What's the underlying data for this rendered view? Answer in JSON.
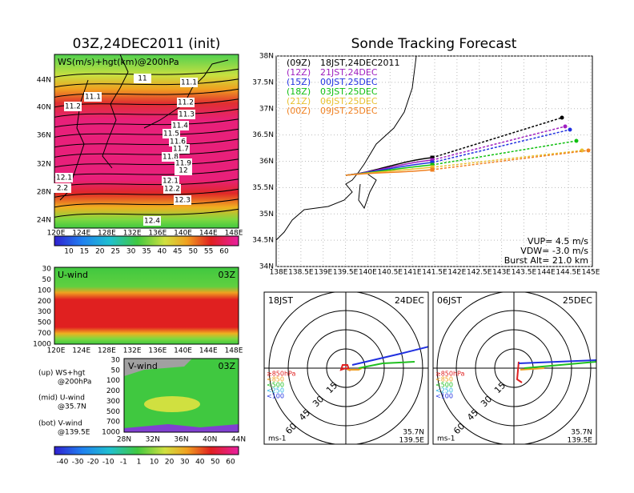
{
  "left_map": {
    "title": "03Z,24DEC2011 (init)",
    "label": "WS(m/s)+hgt(km)@200hPa",
    "lat_labels": [
      "44N",
      "40N",
      "36N",
      "32N",
      "28N",
      "24N"
    ],
    "lon_labels": [
      "120E",
      "124E",
      "128E",
      "132E",
      "136E",
      "140E",
      "144E",
      "148E"
    ],
    "contour_labels": [
      "11",
      "11.1",
      "11.1",
      "11.2",
      "11.2",
      "11.3",
      "11.4",
      "11.5",
      "11.6",
      "11.7",
      "11.8",
      "11.9",
      "12",
      "12.1",
      "2.2",
      "12.1",
      "12.2",
      "12.3",
      "12.4"
    ],
    "colorbar_labels": [
      "10",
      "15",
      "20",
      "25",
      "30",
      "35",
      "40",
      "45",
      "50",
      "55",
      "60"
    ]
  },
  "u_wind": {
    "title": "U-wind",
    "time": "03Z",
    "pressure_labels": [
      "30",
      "50",
      "100",
      "200",
      "300",
      "500",
      "700",
      "1000"
    ],
    "lon_labels": [
      "120E",
      "124E",
      "128E",
      "132E",
      "136E",
      "140E",
      "144E",
      "148E"
    ]
  },
  "legend_notes": [
    "(up) WS+hgt",
    "@200hPa",
    "(mid) U-wind",
    "@35.7N",
    "(bot) V-wind",
    "@139.5E"
  ],
  "v_wind": {
    "title": "V-wind",
    "time": "03Z",
    "pressure_labels": [
      "30",
      "50",
      "100",
      "200",
      "300",
      "500",
      "700",
      "1000"
    ],
    "lat_labels": [
      "28N",
      "32N",
      "36N",
      "40N",
      "44N"
    ],
    "colorbar_labels": [
      "-40",
      "-30",
      "-20",
      "-10",
      "-1",
      "1",
      "10",
      "20",
      "30",
      "40",
      "50",
      "60"
    ]
  },
  "sonde": {
    "title": "Sonde Tracking Forecast",
    "launches": [
      {
        "utc": "(09Z)",
        "label": "18JST,24DEC2011",
        "color": "#000000"
      },
      {
        "utc": "(12Z)",
        "label": "21JST,24DEC",
        "color": "#a020c0"
      },
      {
        "utc": "(15Z)",
        "label": "00JST,25DEC",
        "color": "#2030e0"
      },
      {
        "utc": "(18Z)",
        "label": "03JST,25DEC",
        "color": "#10c010"
      },
      {
        "utc": "(21Z)",
        "label": "06JST,25DEC",
        "color": "#e8c030"
      },
      {
        "utc": "(00Z)",
        "label": "09JST,25DEC",
        "color": "#f08020"
      }
    ],
    "lat_labels": [
      "38N",
      "37.5N",
      "37N",
      "36.5N",
      "36N",
      "35.5N",
      "35N",
      "34.5N",
      "34N"
    ],
    "lon_labels": [
      "138E",
      "138.5E",
      "139E",
      "139.5E",
      "140E",
      "140.5E",
      "141E",
      "141.5E",
      "142E",
      "142.5E",
      "143E",
      "143.5E",
      "144E",
      "144.5E",
      "145E"
    ],
    "params": [
      "VUP= 4.5 m/s",
      "VDW= -3.0 m/s",
      "Burst Alt= 21.0 km"
    ]
  },
  "polar": [
    {
      "time": "18JST",
      "date": "24DEC",
      "lat": "35.7N",
      "lon": "139.5E",
      "unit": "ms-1",
      "ring_labels": [
        "15",
        "30",
        "45",
        "60"
      ]
    },
    {
      "time": "06JST",
      "date": "25DEC",
      "lat": "35.7N",
      "lon": "139.5E",
      "unit": "ms-1",
      "ring_labels": [
        "15",
        "30",
        "45",
        "60"
      ]
    }
  ],
  "levels": [
    {
      "label": "≥850hPa",
      "color": "#e02020"
    },
    {
      "label": "<850",
      "color": "#f0a020"
    },
    {
      "label": "<500",
      "color": "#20c020"
    },
    {
      "label": "<250",
      "color": "#20b0e0"
    },
    {
      "label": "<100",
      "color": "#2030e0"
    }
  ]
}
